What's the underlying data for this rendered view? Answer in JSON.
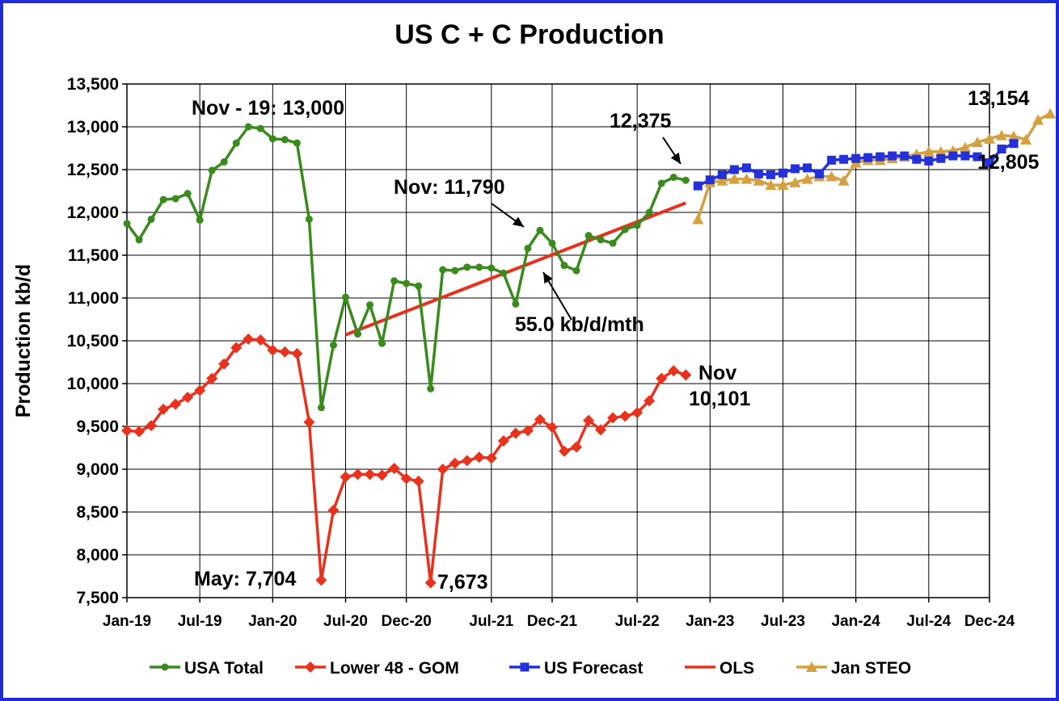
{
  "chart_data": {
    "type": "line",
    "title": "US C + C Production",
    "xlabel": "",
    "ylabel": "Production kb/d",
    "ylim": [
      7500,
      13500
    ],
    "yticks": [
      7500,
      8000,
      8500,
      9000,
      9500,
      10000,
      10500,
      11000,
      11500,
      12000,
      12500,
      13000,
      13500
    ],
    "ytick_labels": [
      "7,500",
      "8,000",
      "8,500",
      "9,000",
      "9,500",
      "10,000",
      "10,500",
      "11,000",
      "11,500",
      "12,000",
      "12,500",
      "13,000",
      "13,500"
    ],
    "x_start_month": "Jan-19",
    "x_end_month": "Dec-24",
    "xtick_months": [
      "Jan-19",
      "Jul-19",
      "Jan-20",
      "Jul-20",
      "Dec-20",
      "Jul-21",
      "Dec-21",
      "Jul-22",
      "Jan-23",
      "Jul-23",
      "Jan-24",
      "Jul-24",
      "Dec-24"
    ],
    "xtick_labels": [
      "Jan-19",
      "Jul-19",
      "Jan-20",
      "Jul-20",
      "Dec-20",
      "Jul-21",
      "Dec-21",
      "Jul-22",
      "Jan-23",
      "Jul-23",
      "Jan-24",
      "Jul-24",
      "Dec-24"
    ],
    "grid": true,
    "legend_position": "bottom",
    "series": [
      {
        "name": "USA Total",
        "color": "#3a8a1e",
        "marker": "circle",
        "start_month": "Jan-19",
        "values": [
          11870,
          11680,
          11920,
          12150,
          12160,
          12220,
          11910,
          12490,
          12590,
          12810,
          13000,
          12980,
          12860,
          12850,
          12810,
          11920,
          9720,
          10450,
          11010,
          10580,
          10920,
          10470,
          11200,
          11170,
          11140,
          9940,
          11330,
          11320,
          11360,
          11360,
          11350,
          11290,
          10930,
          11580,
          11790,
          11640,
          11380,
          11320,
          11730,
          11680,
          11640,
          11800,
          11850,
          12000,
          12340,
          12410,
          12375
        ]
      },
      {
        "name": "Lower 48 - GOM",
        "color": "#e8321e",
        "marker": "diamond",
        "start_month": "Jan-19",
        "values": [
          9450,
          9440,
          9510,
          9700,
          9760,
          9840,
          9920,
          10060,
          10230,
          10420,
          10520,
          10510,
          10390,
          10370,
          10350,
          9550,
          7704,
          8520,
          8910,
          8940,
          8940,
          8930,
          9010,
          8890,
          8860,
          7673,
          9000,
          9070,
          9100,
          9140,
          9130,
          9330,
          9420,
          9450,
          9580,
          9490,
          9210,
          9260,
          9570,
          9460,
          9600,
          9620,
          9660,
          9800,
          10060,
          10150,
          10101
        ]
      },
      {
        "name": "US Forecast",
        "color": "#2431d8",
        "marker": "square",
        "start_month": "Dec-22",
        "values": [
          12310,
          12380,
          12440,
          12500,
          12520,
          12450,
          12440,
          12460,
          12510,
          12520,
          12450,
          12610,
          12620,
          12630,
          12640,
          12650,
          12660,
          12660,
          12620,
          12600,
          12630,
          12660,
          12660,
          12650,
          12580,
          12740,
          12805
        ]
      },
      {
        "name": "OLS",
        "color": "#e8321e",
        "marker": "none",
        "start_month": "Jul-20",
        "end_month": "Nov-22",
        "start_value": 10570,
        "slope_per_month": 55.0,
        "label": "55.0 kb/d/mth"
      },
      {
        "name": "Jan STEO",
        "color": "#d4a040",
        "marker": "triangle",
        "start_month": "Dec-22",
        "values": [
          11920,
          12350,
          12370,
          12390,
          12390,
          12370,
          12320,
          12320,
          12350,
          12390,
          12420,
          12420,
          12370,
          12580,
          12610,
          12610,
          12630,
          12650,
          12680,
          12710,
          12710,
          12720,
          12760,
          12820,
          12860,
          12900,
          12890,
          12850,
          13080,
          13154
        ]
      }
    ],
    "annotations": [
      {
        "text": "Nov - 19: 13,000"
      },
      {
        "text": "12,375"
      },
      {
        "text": "Nov: 11,790"
      },
      {
        "text": "13,154"
      },
      {
        "text": "12,805"
      },
      {
        "text": "Nov"
      },
      {
        "text": "10,101"
      },
      {
        "text": "May: 7,704"
      },
      {
        "text": "7,673"
      }
    ]
  }
}
